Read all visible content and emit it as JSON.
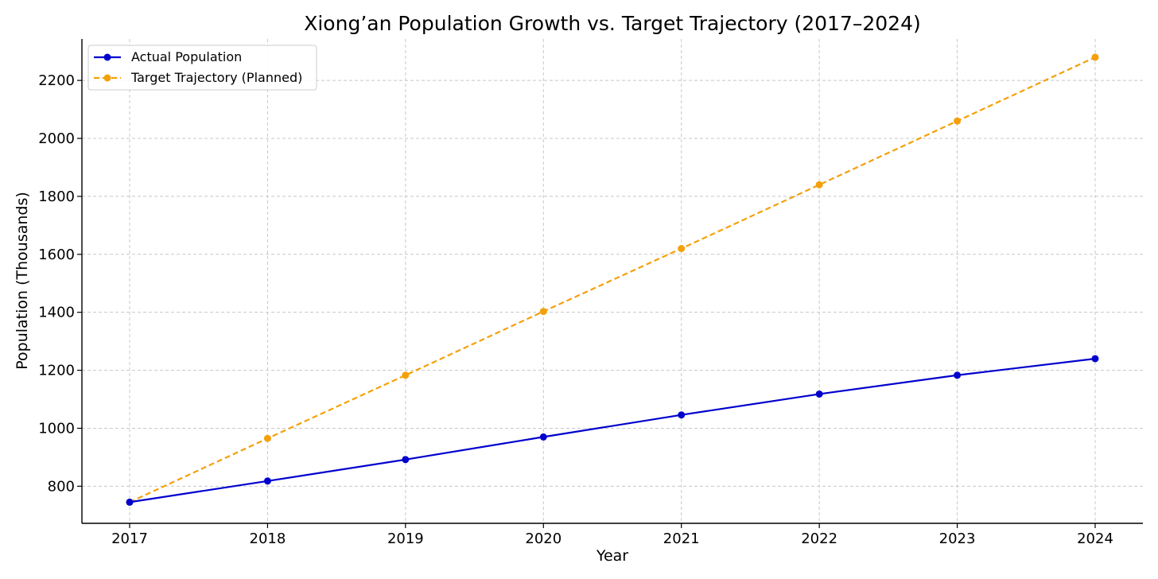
{
  "chart_data": {
    "type": "line",
    "title": "Xiong’an Population Growth vs. Target Trajectory (2017–2024)",
    "xlabel": "Year",
    "ylabel": "Population (Thousands)",
    "x": [
      "2017",
      "2018",
      "2019",
      "2020",
      "2021",
      "2022",
      "2023",
      "2024"
    ],
    "yticks": [
      800,
      1000,
      1200,
      1400,
      1600,
      1800,
      2000,
      2200
    ],
    "ylim": [
      672,
      2343
    ],
    "grid": true,
    "legend_position": "top-left",
    "series": [
      {
        "name": "Actual Population",
        "values": [
          745,
          818,
          892,
          970,
          1046,
          1118,
          1183,
          1240
        ],
        "color": "#0000cd",
        "line_style": "solid",
        "marker": "circle"
      },
      {
        "name": "Target Trajectory (Planned)",
        "values": [
          745,
          965,
          1183,
          1403,
          1620,
          1840,
          2060,
          2280
        ],
        "color": "#f5a00a",
        "line_style": "dashed",
        "marker": "circle"
      }
    ]
  }
}
